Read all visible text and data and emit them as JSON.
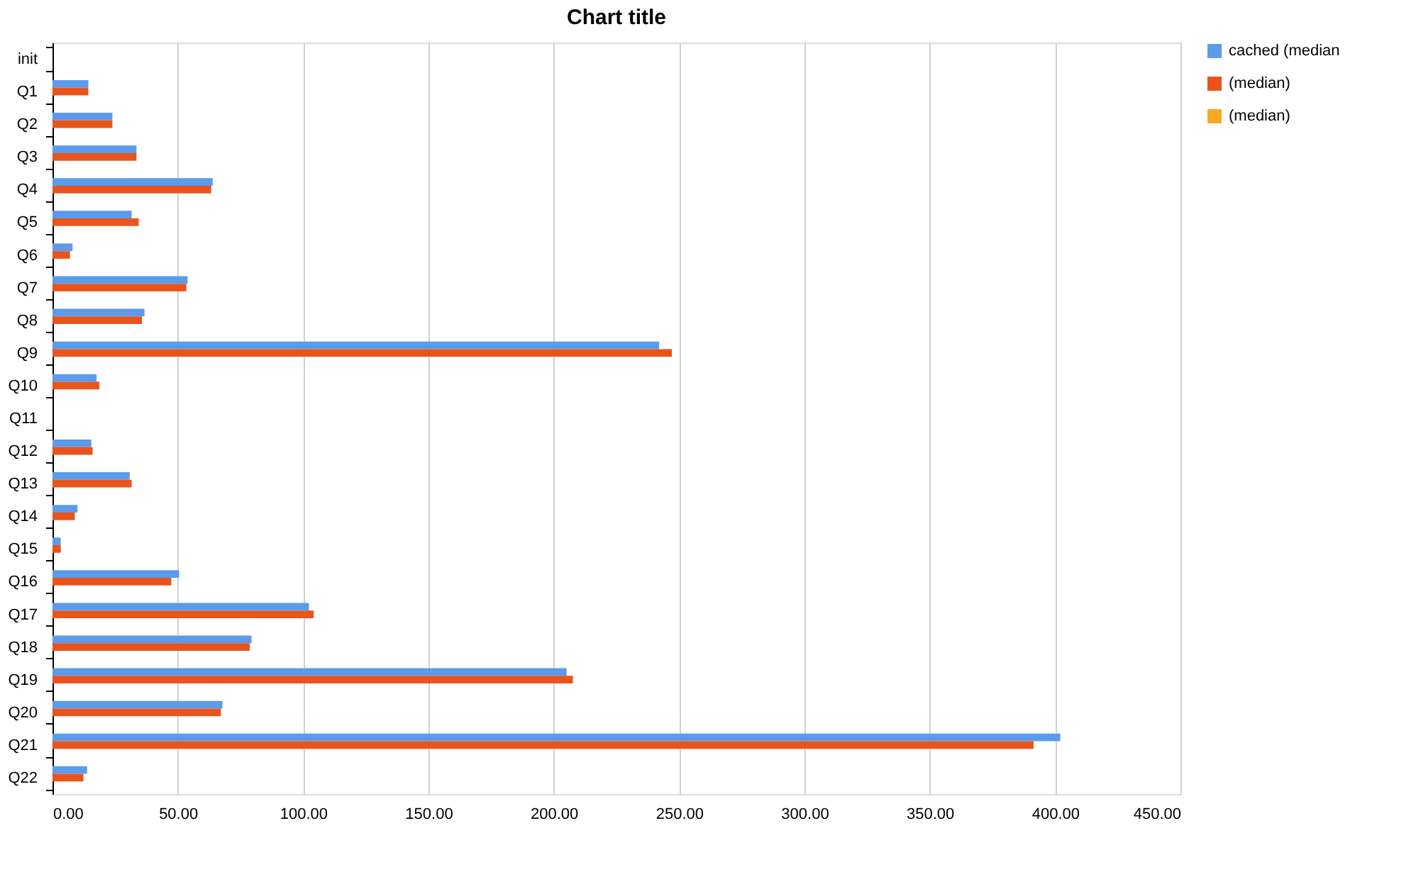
{
  "chart_data": {
    "type": "bar",
    "orientation": "horizontal",
    "title": "Chart title",
    "categories": [
      "init",
      "Q1",
      "Q2",
      "Q3",
      "Q4",
      "Q5",
      "Q6",
      "Q7",
      "Q8",
      "Q9",
      "Q10",
      "Q11",
      "Q12",
      "Q13",
      "Q14",
      "Q15",
      "Q16",
      "Q17",
      "Q18",
      "Q19",
      "Q20",
      "Q21",
      "Q22"
    ],
    "series": [
      {
        "name": "cached (median",
        "color": "#5b9bec",
        "values": [
          null,
          14.3,
          23.9,
          33.5,
          63.9,
          31.6,
          8.0,
          53.9,
          36.7,
          242.0,
          17.6,
          null,
          15.5,
          30.8,
          10.0,
          3.3,
          50.5,
          102.3,
          79.4,
          205.1,
          67.8,
          402.1,
          13.8
        ]
      },
      {
        "name": "(median)",
        "color": "#e8541c",
        "values": [
          null,
          14.3,
          23.9,
          33.5,
          63.3,
          34.4,
          7.0,
          53.4,
          35.7,
          247.1,
          18.7,
          null,
          16.0,
          31.6,
          8.9,
          3.3,
          47.4,
          104.2,
          78.7,
          207.6,
          67.2,
          391.4,
          12.3
        ]
      },
      {
        "name": "(median)",
        "color": "#f9a825",
        "values": [
          null,
          null,
          null,
          null,
          null,
          null,
          null,
          null,
          null,
          null,
          null,
          null,
          null,
          null,
          null,
          null,
          null,
          null,
          null,
          null,
          null,
          null,
          null
        ]
      }
    ],
    "xlim": [
      0,
      450
    ],
    "xticks": [
      {
        "value": 0,
        "label": "0.00"
      },
      {
        "value": 50,
        "label": "50.00"
      },
      {
        "value": 100,
        "label": "100.00"
      },
      {
        "value": 150,
        "label": "150.00"
      },
      {
        "value": 200,
        "label": "200.00"
      },
      {
        "value": 250,
        "label": "250.00"
      },
      {
        "value": 300,
        "label": "300.00"
      },
      {
        "value": 350,
        "label": "350.00"
      },
      {
        "value": 400,
        "label": "400.00"
      },
      {
        "value": 450,
        "label": "450.00"
      }
    ],
    "grid": "x",
    "legend": "right"
  }
}
